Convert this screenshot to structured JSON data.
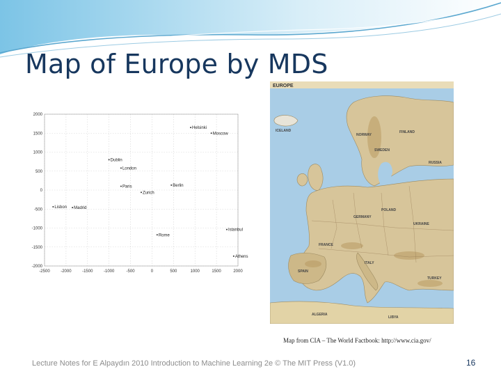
{
  "slide": {
    "title": "Map of Europe by MDS",
    "caption": "Map from CIA – The World Factbook: http://www.cia.gov/",
    "footer": "Lecture Notes for E Alpaydın 2010 Introduction to Machine Learning 2e © The MIT Press (V1.0)",
    "page_number": "16"
  },
  "map": {
    "label": "EUROPE",
    "colors": {
      "sea": "#a9cde6",
      "land": "#d7c59a",
      "relief": "#b99a63"
    },
    "country_labels": [
      "NORWAY",
      "SWEDEN",
      "FINLAND",
      "RUSSIA",
      "ICELAND",
      "FRANCE",
      "SPAIN",
      "GERMANY",
      "POLAND",
      "UKRAINE",
      "ITALY",
      "TURKEY",
      "ALGERIA",
      "LIBYA"
    ]
  },
  "colors": {
    "title": "#17375e",
    "footer": "#8c8c8c",
    "swoosh": "#5aa7cf",
    "point": "#333333",
    "grid": "#d5d5d5"
  },
  "chart_data": {
    "type": "scatter",
    "title": "",
    "xlabel": "",
    "ylabel": "",
    "xlim": [
      -2500,
      2000
    ],
    "ylim": [
      -2000,
      2000
    ],
    "grid": true,
    "xticks": [
      -2500,
      -2000,
      -1500,
      -1000,
      -500,
      0,
      500,
      1000,
      1500,
      2000
    ],
    "yticks": [
      -2000,
      -1500,
      -1000,
      -500,
      0,
      500,
      1000,
      1500,
      2000
    ],
    "points": [
      {
        "label": "Helsinki",
        "x": 900,
        "y": 1650
      },
      {
        "label": "Moscow",
        "x": 1380,
        "y": 1500
      },
      {
        "label": "Dublin",
        "x": -1000,
        "y": 800
      },
      {
        "label": "London",
        "x": -720,
        "y": 580
      },
      {
        "label": "Paris",
        "x": -720,
        "y": 100
      },
      {
        "label": "Berlin",
        "x": 450,
        "y": 130
      },
      {
        "label": "Zurich",
        "x": -250,
        "y": -60
      },
      {
        "label": "Lisbon",
        "x": -2300,
        "y": -440
      },
      {
        "label": "Madrid",
        "x": -1850,
        "y": -460
      },
      {
        "label": "Istanbul",
        "x": 1740,
        "y": -1040
      },
      {
        "label": "Rome",
        "x": 120,
        "y": -1180
      },
      {
        "label": "Athens",
        "x": 1900,
        "y": -1740
      }
    ]
  }
}
